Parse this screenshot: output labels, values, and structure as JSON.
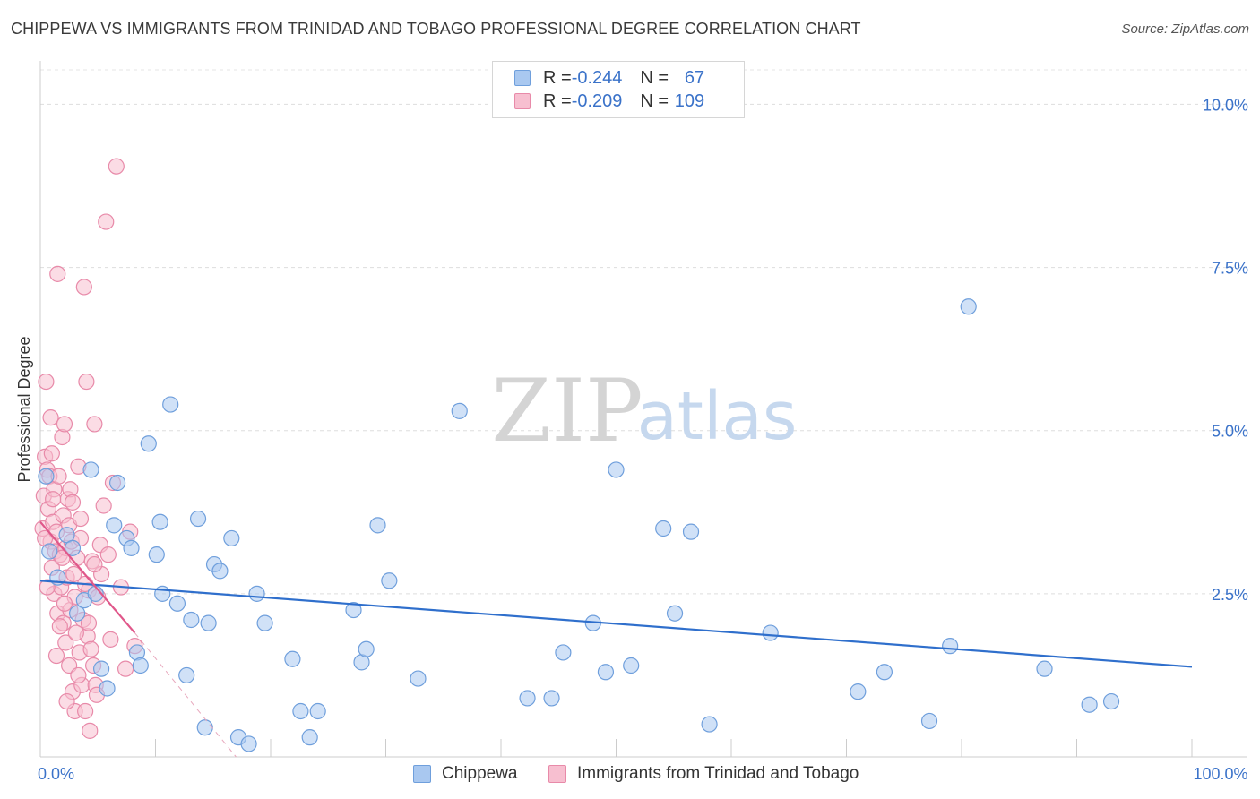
{
  "title": "CHIPPEWA VS IMMIGRANTS FROM TRINIDAD AND TOBAGO PROFESSIONAL DEGREE CORRELATION CHART",
  "source": "Source: ZipAtlas.com",
  "watermark": {
    "zip": "ZIP",
    "atlas": "atlas"
  },
  "legend": {
    "rows": [
      {
        "r_label": "R = ",
        "r_value": "-0.244",
        "n_label": "N = ",
        "n_value": "67",
        "color": "#a9c8f0",
        "border": "#6f9fdc"
      },
      {
        "r_label": "R = ",
        "r_value": "-0.209",
        "n_label": "N = ",
        "n_value": "109",
        "color": "#f7bfd0",
        "border": "#e88aa9"
      }
    ]
  },
  "bottom_legend": [
    {
      "label": "Chippewa",
      "color": "#a9c8f0",
      "border": "#6f9fdc"
    },
    {
      "label": "Immigrants from Trinidad and Tobago",
      "color": "#f7bfd0",
      "border": "#e88aa9"
    }
  ],
  "chart_data": {
    "type": "scatter",
    "title": "CHIPPEWA VS IMMIGRANTS FROM TRINIDAD AND TOBAGO PROFESSIONAL DEGREE CORRELATION CHART",
    "xlabel": "",
    "ylabel": "Professional Degree",
    "xlim": [
      0,
      100
    ],
    "ylim": [
      0,
      10.5
    ],
    "x_tick_labels": [
      {
        "value": 0,
        "label": "0.0%"
      },
      {
        "value": 100,
        "label": "100.0%"
      }
    ],
    "y_ticks": [
      {
        "value": 2.5,
        "label": "2.5%"
      },
      {
        "value": 5.0,
        "label": "5.0%"
      },
      {
        "value": 7.5,
        "label": "7.5%"
      },
      {
        "value": 10.0,
        "label": "10.0%"
      }
    ],
    "grid": true,
    "series": [
      {
        "name": "Chippewa",
        "color": "#a9c8f0",
        "stroke": "#6f9fdc",
        "trend": {
          "x": [
            0,
            100
          ],
          "y": [
            2.7,
            1.38
          ],
          "color": "#2f6fcc"
        },
        "points": [
          [
            0.5,
            4.3
          ],
          [
            0.8,
            3.15
          ],
          [
            1.5,
            2.75
          ],
          [
            2.3,
            3.4
          ],
          [
            2.8,
            3.2
          ],
          [
            3.2,
            2.2
          ],
          [
            3.8,
            2.4
          ],
          [
            4.4,
            4.4
          ],
          [
            4.8,
            2.5
          ],
          [
            5.3,
            1.35
          ],
          [
            5.8,
            1.05
          ],
          [
            6.4,
            3.55
          ],
          [
            6.7,
            4.2
          ],
          [
            7.5,
            3.35
          ],
          [
            7.9,
            3.2
          ],
          [
            8.4,
            1.6
          ],
          [
            8.7,
            1.4
          ],
          [
            9.4,
            4.8
          ],
          [
            10.1,
            3.1
          ],
          [
            10.4,
            3.6
          ],
          [
            10.6,
            2.5
          ],
          [
            11.3,
            5.4
          ],
          [
            11.9,
            2.35
          ],
          [
            12.7,
            1.25
          ],
          [
            13.1,
            2.1
          ],
          [
            13.7,
            3.65
          ],
          [
            14.3,
            0.45
          ],
          [
            14.6,
            2.05
          ],
          [
            15.1,
            2.95
          ],
          [
            15.6,
            2.85
          ],
          [
            16.6,
            3.35
          ],
          [
            17.2,
            0.3
          ],
          [
            18.1,
            0.2
          ],
          [
            18.8,
            2.5
          ],
          [
            19.5,
            2.05
          ],
          [
            21.9,
            1.5
          ],
          [
            22.6,
            0.7
          ],
          [
            23.4,
            0.3
          ],
          [
            24.1,
            0.7
          ],
          [
            27.2,
            2.25
          ],
          [
            27.9,
            1.45
          ],
          [
            28.3,
            1.65
          ],
          [
            29.3,
            3.55
          ],
          [
            30.3,
            2.7
          ],
          [
            32.8,
            1.2
          ],
          [
            36.4,
            5.3
          ],
          [
            42.3,
            0.9
          ],
          [
            44.4,
            0.9
          ],
          [
            45.4,
            1.6
          ],
          [
            48.0,
            2.05
          ],
          [
            49.1,
            1.3
          ],
          [
            50.0,
            4.4
          ],
          [
            51.3,
            1.4
          ],
          [
            54.1,
            3.5
          ],
          [
            55.1,
            2.2
          ],
          [
            56.5,
            3.45
          ],
          [
            58.1,
            0.5
          ],
          [
            63.4,
            1.9
          ],
          [
            71.0,
            1.0
          ],
          [
            73.3,
            1.3
          ],
          [
            77.2,
            0.55
          ],
          [
            79.0,
            1.7
          ],
          [
            80.6,
            6.9
          ],
          [
            87.2,
            1.35
          ],
          [
            91.1,
            0.8
          ],
          [
            93.0,
            0.85
          ]
        ]
      },
      {
        "name": "Immigrants from Trinidad and Tobago",
        "color": "#f7bfd0",
        "stroke": "#e88aa9",
        "trend": {
          "x": [
            0,
            8.2
          ],
          "y": [
            3.6,
            1.9
          ],
          "color": "#e0578a",
          "dash_to": {
            "x": 17.0,
            "y": 0.0
          }
        },
        "points": [
          [
            0.2,
            3.5
          ],
          [
            0.3,
            4.0
          ],
          [
            0.4,
            4.6
          ],
          [
            0.5,
            5.75
          ],
          [
            0.6,
            4.4
          ],
          [
            0.7,
            3.8
          ],
          [
            0.8,
            4.3
          ],
          [
            0.9,
            3.3
          ],
          [
            1.0,
            4.65
          ],
          [
            1.0,
            2.9
          ],
          [
            1.1,
            3.6
          ],
          [
            1.2,
            4.1
          ],
          [
            1.2,
            2.5
          ],
          [
            1.3,
            3.15
          ],
          [
            1.4,
            3.45
          ],
          [
            1.5,
            2.2
          ],
          [
            1.5,
            7.4
          ],
          [
            1.6,
            4.3
          ],
          [
            1.7,
            3.1
          ],
          [
            1.8,
            2.6
          ],
          [
            1.9,
            4.9
          ],
          [
            2.0,
            3.7
          ],
          [
            2.0,
            2.05
          ],
          [
            2.1,
            5.1
          ],
          [
            2.2,
            3.2
          ],
          [
            2.2,
            1.75
          ],
          [
            2.3,
            2.75
          ],
          [
            2.4,
            3.95
          ],
          [
            2.5,
            3.55
          ],
          [
            2.5,
            1.4
          ],
          [
            2.6,
            2.25
          ],
          [
            2.7,
            3.3
          ],
          [
            2.8,
            1.0
          ],
          [
            2.9,
            2.8
          ],
          [
            3.0,
            0.7
          ],
          [
            3.0,
            2.45
          ],
          [
            3.2,
            3.05
          ],
          [
            3.3,
            4.45
          ],
          [
            3.4,
            1.6
          ],
          [
            3.5,
            3.35
          ],
          [
            3.6,
            1.1
          ],
          [
            3.7,
            2.1
          ],
          [
            3.8,
            7.2
          ],
          [
            3.9,
            0.7
          ],
          [
            4.0,
            5.75
          ],
          [
            4.1,
            1.85
          ],
          [
            4.2,
            2.55
          ],
          [
            4.3,
            0.4
          ],
          [
            4.4,
            1.65
          ],
          [
            4.5,
            3.0
          ],
          [
            4.6,
            1.4
          ],
          [
            4.7,
            5.1
          ],
          [
            4.8,
            1.1
          ],
          [
            4.9,
            0.95
          ],
          [
            5.0,
            2.45
          ],
          [
            5.2,
            3.25
          ],
          [
            5.3,
            2.8
          ],
          [
            5.5,
            3.85
          ],
          [
            5.7,
            8.2
          ],
          [
            5.9,
            3.1
          ],
          [
            6.1,
            1.8
          ],
          [
            6.3,
            4.2
          ],
          [
            6.6,
            9.05
          ],
          [
            7.0,
            2.6
          ],
          [
            7.4,
            1.35
          ],
          [
            7.8,
            3.45
          ],
          [
            8.2,
            1.7
          ],
          [
            0.6,
            2.6
          ],
          [
            1.1,
            3.95
          ],
          [
            1.7,
            2.0
          ],
          [
            2.6,
            4.1
          ],
          [
            3.1,
            1.9
          ],
          [
            3.5,
            3.65
          ],
          [
            4.2,
            2.05
          ],
          [
            0.9,
            5.2
          ],
          [
            1.4,
            1.55
          ],
          [
            2.3,
            0.85
          ],
          [
            3.9,
            2.65
          ],
          [
            4.7,
            2.95
          ],
          [
            1.9,
            3.05
          ],
          [
            0.4,
            3.35
          ],
          [
            2.1,
            2.35
          ],
          [
            3.3,
            1.25
          ],
          [
            2.8,
            3.9
          ]
        ]
      }
    ]
  }
}
